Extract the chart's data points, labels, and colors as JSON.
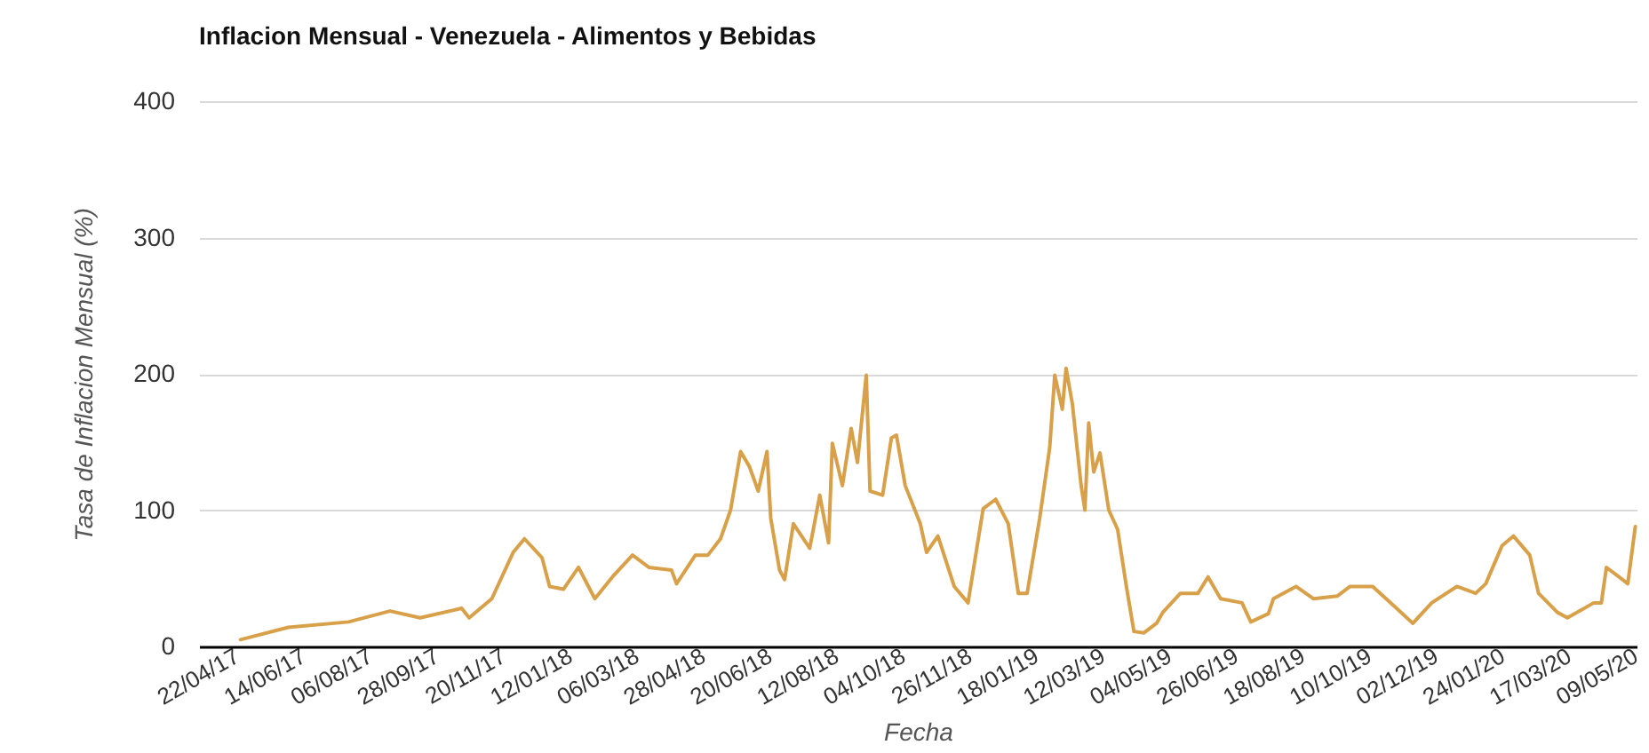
{
  "chart_data": {
    "type": "line",
    "title": "Inflacion Mensual - Venezuela - Alimentos y Bebidas",
    "xlabel": "Fecha",
    "ylabel": "Tasa de Inflacion Mensual (%)",
    "x": [
      "2017-04-25",
      "2017-06-02",
      "2017-07-20",
      "2017-08-22",
      "2017-09-15",
      "2017-10-18",
      "2017-10-24",
      "2017-11-11",
      "2017-11-28",
      "2017-12-07",
      "2017-12-21",
      "2017-12-27",
      "2018-01-07",
      "2018-01-19",
      "2018-02-01",
      "2018-02-15",
      "2018-03-03",
      "2018-03-16",
      "2018-04-03",
      "2018-04-07",
      "2018-04-22",
      "2018-05-02",
      "2018-05-12",
      "2018-05-20",
      "2018-05-28",
      "2018-06-04",
      "2018-06-11",
      "2018-06-18",
      "2018-06-21",
      "2018-06-28",
      "2018-07-02",
      "2018-07-09",
      "2018-07-22",
      "2018-07-30",
      "2018-08-06",
      "2018-08-09",
      "2018-08-17",
      "2018-08-24",
      "2018-08-29",
      "2018-09-05",
      "2018-09-08",
      "2018-09-18",
      "2018-09-25",
      "2018-09-29",
      "2018-10-06",
      "2018-10-18",
      "2018-10-23",
      "2018-11-01",
      "2018-11-14",
      "2018-11-25",
      "2018-12-07",
      "2018-12-17",
      "2018-12-27",
      "2019-01-04",
      "2019-01-11",
      "2019-01-21",
      "2019-01-29",
      "2019-02-02",
      "2019-02-08",
      "2019-02-11",
      "2019-02-16",
      "2019-02-23",
      "2019-02-26",
      "2019-03-01",
      "2019-03-05",
      "2019-03-10",
      "2019-03-17",
      "2019-03-24",
      "2019-03-31",
      "2019-04-06",
      "2019-04-14",
      "2019-04-24",
      "2019-04-29",
      "2019-05-13",
      "2019-05-27",
      "2019-06-04",
      "2019-06-14",
      "2019-07-01",
      "2019-07-08",
      "2019-07-22",
      "2019-07-26",
      "2019-08-13",
      "2019-08-27",
      "2019-09-15",
      "2019-09-25",
      "2019-10-13",
      "2019-11-01",
      "2019-11-14",
      "2019-11-29",
      "2019-12-19",
      "2020-01-03",
      "2020-01-11",
      "2020-01-24",
      "2020-02-02",
      "2020-02-15",
      "2020-02-22",
      "2020-03-08",
      "2020-03-16",
      "2020-04-06",
      "2020-04-12",
      "2020-04-16",
      "2020-04-26",
      "2020-05-03",
      "2020-05-09"
    ],
    "series": [
      {
        "color": "#d9a04a",
        "values": [
          5,
          14,
          18,
          26,
          21,
          28,
          21,
          35,
          69,
          79,
          65,
          44,
          42,
          58,
          35,
          51,
          67,
          58,
          56,
          46,
          67,
          67,
          79,
          100,
          143,
          132,
          114,
          143,
          94,
          56,
          49,
          90,
          72,
          111,
          76,
          149,
          118,
          160,
          135,
          199,
          114,
          111,
          153,
          155,
          118,
          90,
          69,
          81,
          44,
          32,
          101,
          108,
          90,
          39,
          39,
          94,
          146,
          199,
          174,
          204,
          178,
          118,
          100,
          164,
          128,
          142,
          100,
          86,
          44,
          11,
          10,
          17,
          25,
          39,
          39,
          51,
          35,
          32,
          18,
          24,
          35,
          44,
          35,
          37,
          44,
          44,
          28,
          17,
          32,
          44,
          39,
          46,
          74,
          81,
          67,
          39,
          25,
          21,
          32,
          32,
          58,
          51,
          46,
          88
        ]
      }
    ],
    "xlim": [
      "2017-03-23",
      "2020-05-10"
    ],
    "xticks": [
      {
        "value": "2017-04-22",
        "label": "22/04/17"
      },
      {
        "value": "2017-06-14",
        "label": "14/06/17"
      },
      {
        "value": "2017-08-06",
        "label": "06/08/17"
      },
      {
        "value": "2017-09-28",
        "label": "28/09/17"
      },
      {
        "value": "2017-11-20",
        "label": "20/11/17"
      },
      {
        "value": "2018-01-12",
        "label": "12/01/18"
      },
      {
        "value": "2018-03-06",
        "label": "06/03/18"
      },
      {
        "value": "2018-04-28",
        "label": "28/04/18"
      },
      {
        "value": "2018-06-20",
        "label": "20/06/18"
      },
      {
        "value": "2018-08-12",
        "label": "12/08/18"
      },
      {
        "value": "2018-10-04",
        "label": "04/10/18"
      },
      {
        "value": "2018-11-26",
        "label": "26/11/18"
      },
      {
        "value": "2019-01-18",
        "label": "18/01/19"
      },
      {
        "value": "2019-03-12",
        "label": "12/03/19"
      },
      {
        "value": "2019-05-04",
        "label": "04/05/19"
      },
      {
        "value": "2019-06-26",
        "label": "26/06/19"
      },
      {
        "value": "2019-08-18",
        "label": "18/08/19"
      },
      {
        "value": "2019-10-10",
        "label": "10/10/19"
      },
      {
        "value": "2019-12-02",
        "label": "02/12/19"
      },
      {
        "value": "2020-01-24",
        "label": "24/01/20"
      },
      {
        "value": "2020-03-17",
        "label": "17/03/20"
      },
      {
        "value": "2020-05-09",
        "label": "09/05/20"
      }
    ],
    "ylim": [
      0,
      400
    ],
    "yticks": [
      0,
      100,
      200,
      300,
      400
    ],
    "grid": "y",
    "legend": false,
    "line_style": "solid"
  }
}
